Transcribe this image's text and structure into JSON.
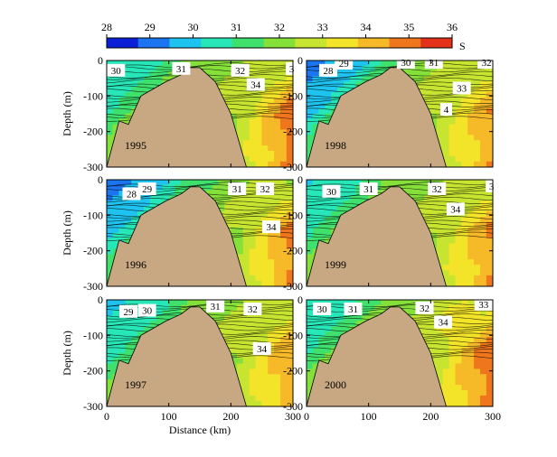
{
  "chart_data": {
    "type": "heatmap",
    "colorbar": {
      "ticks": [
        "28",
        "29",
        "30",
        "31",
        "32",
        "33",
        "34",
        "35",
        "36"
      ],
      "range": [
        28,
        36
      ],
      "unit": "S",
      "colors": [
        "#0a1fd6",
        "#1b74f0",
        "#1ec3f0",
        "#27e7b8",
        "#3fe06c",
        "#86e03a",
        "#c7e430",
        "#f3e429",
        "#f6b928",
        "#f0761e",
        "#e4321a"
      ]
    },
    "xaxis": {
      "label": "Distance (km)",
      "ticks": [
        "0",
        "100",
        "200",
        "300"
      ],
      "range": [
        0,
        300
      ]
    },
    "yaxis": {
      "label": "Depth (m)",
      "ticks": [
        "0",
        "-100",
        "-200",
        "-300"
      ],
      "range": [
        -300,
        0
      ]
    },
    "bathymetry_color": "#c8a882",
    "panels": [
      {
        "year": "1995",
        "labels": [
          {
            "text": "30",
            "d": 15,
            "z": -30
          },
          {
            "text": "31",
            "d": 120,
            "z": -25
          },
          {
            "text": "32",
            "d": 215,
            "z": -30
          },
          {
            "text": "3",
            "d": 298,
            "z": -25
          },
          {
            "text": "34",
            "d": 240,
            "z": -70
          }
        ],
        "fields": {
          "shallow": 30.2,
          "mid": 32.5,
          "deep": 35.0
        }
      },
      {
        "year": "1998",
        "labels": [
          {
            "text": "29",
            "d": 60,
            "z": -10
          },
          {
            "text": "30",
            "d": 160,
            "z": -8
          },
          {
            "text": "31",
            "d": 205,
            "z": -8
          },
          {
            "text": "32",
            "d": 290,
            "z": -8
          },
          {
            "text": "28",
            "d": 35,
            "z": -30
          },
          {
            "text": "33",
            "d": 250,
            "z": -80
          },
          {
            "text": "4",
            "d": 225,
            "z": -140
          }
        ],
        "fields": {
          "shallow": 28.5,
          "mid": 32.5,
          "deep": 34.5
        }
      },
      {
        "year": "1996",
        "labels": [
          {
            "text": "29",
            "d": 65,
            "z": -28
          },
          {
            "text": "28",
            "d": 40,
            "z": -42
          },
          {
            "text": "31",
            "d": 210,
            "z": -28
          },
          {
            "text": "32",
            "d": 255,
            "z": -28
          },
          {
            "text": "34",
            "d": 265,
            "z": -135
          }
        ],
        "fields": {
          "shallow": 28.5,
          "mid": 32.3,
          "deep": 34.8
        }
      },
      {
        "year": "1999",
        "labels": [
          {
            "text": "30",
            "d": 40,
            "z": -35
          },
          {
            "text": "31",
            "d": 100,
            "z": -28
          },
          {
            "text": "32",
            "d": 210,
            "z": -28
          },
          {
            "text": "3",
            "d": 298,
            "z": -20
          },
          {
            "text": "34",
            "d": 240,
            "z": -85
          }
        ],
        "fields": {
          "shallow": 30.0,
          "mid": 32.5,
          "deep": 34.6
        }
      },
      {
        "year": "1997",
        "labels": [
          {
            "text": "29",
            "d": 35,
            "z": -35
          },
          {
            "text": "30",
            "d": 65,
            "z": -32
          },
          {
            "text": "31",
            "d": 175,
            "z": -20
          },
          {
            "text": "32",
            "d": 235,
            "z": -28
          },
          {
            "text": "34",
            "d": 250,
            "z": -140
          }
        ],
        "fields": {
          "shallow": 29.5,
          "mid": 32.5,
          "deep": 34.4
        }
      },
      {
        "year": "2000",
        "labels": [
          {
            "text": "30",
            "d": 25,
            "z": -28
          },
          {
            "text": "31",
            "d": 75,
            "z": -28
          },
          {
            "text": "32",
            "d": 190,
            "z": -25
          },
          {
            "text": "33",
            "d": 285,
            "z": -15
          },
          {
            "text": "34",
            "d": 220,
            "z": -65
          }
        ],
        "fields": {
          "shallow": 30.0,
          "mid": 32.8,
          "deep": 35.0
        }
      }
    ]
  }
}
